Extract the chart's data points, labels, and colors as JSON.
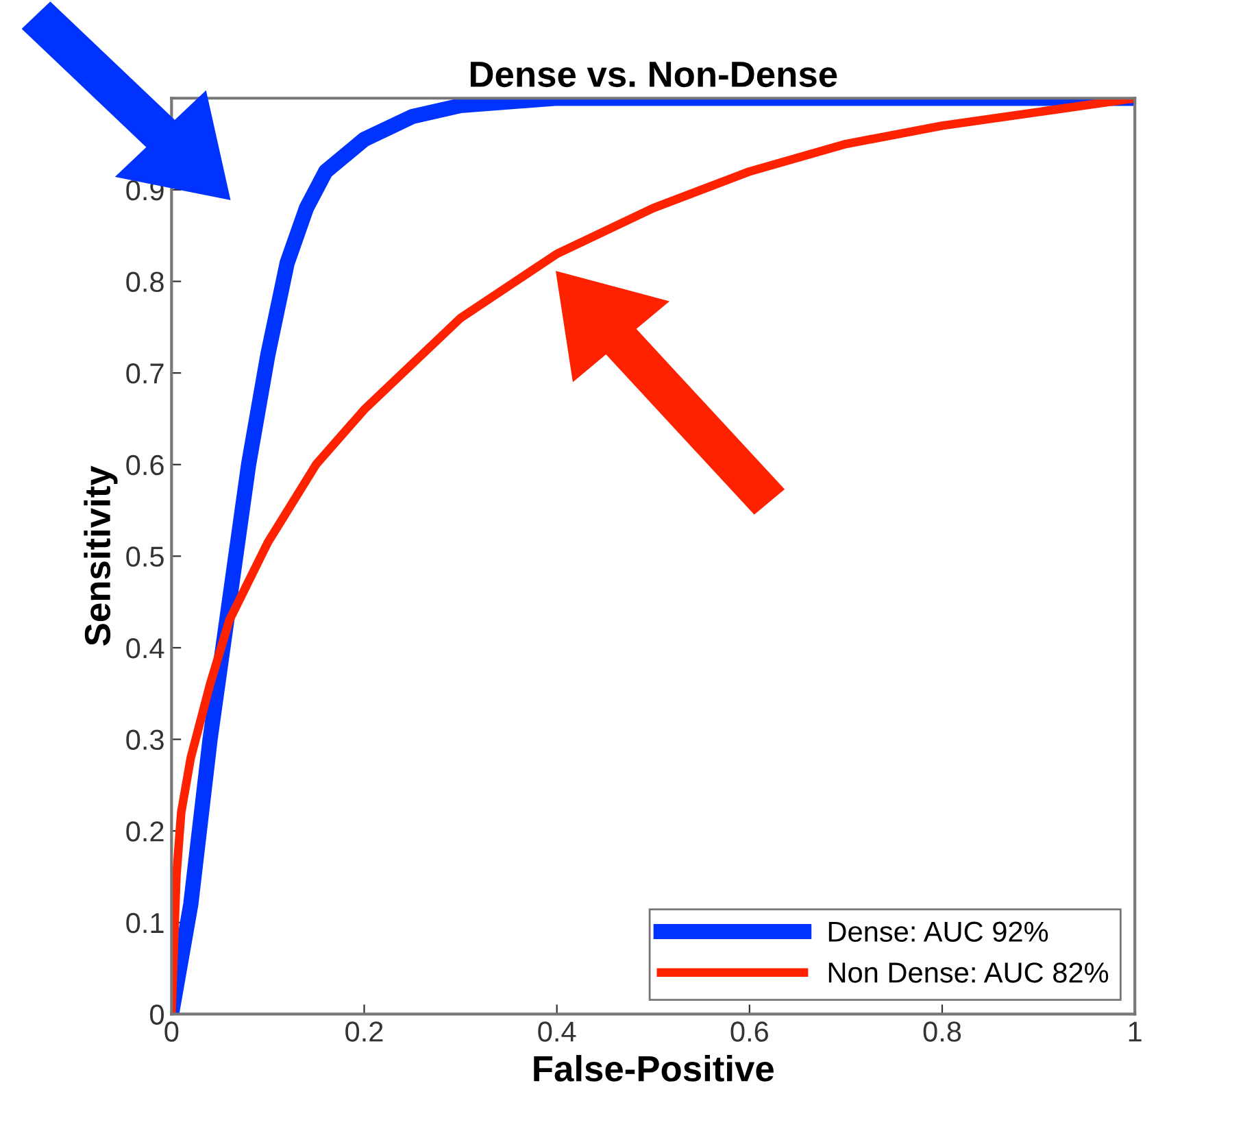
{
  "chart_data": {
    "type": "line",
    "title": "Dense vs. Non-Dense",
    "xlabel": "False-Positive",
    "ylabel": "Sensitivity",
    "xlim": [
      0,
      1
    ],
    "ylim": [
      0,
      1
    ],
    "xticks": [
      0,
      0.2,
      0.4,
      0.6,
      0.8,
      1
    ],
    "yticks": [
      0,
      0.1,
      0.2,
      0.3,
      0.4,
      0.5,
      0.6,
      0.7,
      0.8,
      0.9,
      {
        "value": 1,
        "label": null
      }
    ],
    "grid": false,
    "legend": "bottom right",
    "marker": "none",
    "line_style": "solid",
    "series": [
      {
        "name": "Dense: AUC 92%",
        "color": "#0033ff",
        "x": [
          0,
          0.02,
          0.04,
          0.06,
          0.08,
          0.1,
          0.12,
          0.14,
          0.16,
          0.2,
          0.25,
          0.3,
          0.4,
          0.6,
          1
        ],
        "values": [
          0,
          0.12,
          0.3,
          0.45,
          0.6,
          0.72,
          0.82,
          0.88,
          0.92,
          0.955,
          0.98,
          0.992,
          1,
          1,
          1
        ]
      },
      {
        "name": "Non Dense: AUC 82%",
        "color": "#ff2200",
        "x": [
          0,
          0.005,
          0.01,
          0.02,
          0.04,
          0.06,
          0.1,
          0.15,
          0.2,
          0.3,
          0.4,
          0.5,
          0.6,
          0.7,
          0.8,
          0.9,
          1
        ],
        "values": [
          0,
          0.15,
          0.22,
          0.28,
          0.36,
          0.43,
          0.515,
          0.6,
          0.66,
          0.76,
          0.83,
          0.88,
          0.92,
          0.95,
          0.97,
          0.985,
          1
        ]
      }
    ]
  }
}
